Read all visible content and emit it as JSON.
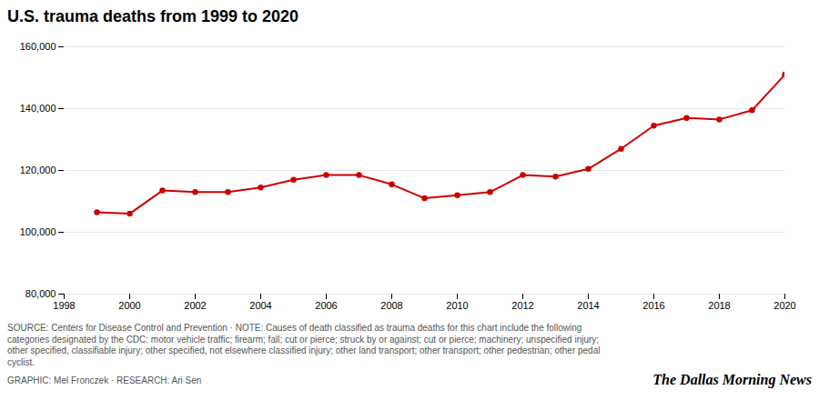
{
  "chart_data": {
    "type": "line",
    "title": "U.S. trauma deaths from 1999 to 2020",
    "x": [
      1999,
      2000,
      2001,
      2002,
      2003,
      2004,
      2005,
      2006,
      2007,
      2008,
      2009,
      2010,
      2011,
      2012,
      2013,
      2014,
      2015,
      2016,
      2017,
      2018,
      2019,
      2020
    ],
    "values": [
      106500,
      106000,
      113500,
      113000,
      113000,
      114500,
      117000,
      118500,
      118500,
      115500,
      111000,
      112000,
      113000,
      118500,
      118000,
      120500,
      127000,
      134500,
      137000,
      136500,
      139500,
      151000
    ],
    "color": "#cc0000",
    "marker": "circle",
    "xlim": [
      1998,
      2020
    ],
    "xticks": [
      1998,
      2000,
      2002,
      2004,
      2006,
      2008,
      2010,
      2012,
      2014,
      2016,
      2018,
      2020
    ],
    "ylim": [
      80000,
      160000
    ],
    "yticks": [
      {
        "value": 80000,
        "label": "80,000"
      },
      {
        "value": 100000,
        "label": "100,000"
      },
      {
        "value": 120000,
        "label": "120,000"
      },
      {
        "value": 140000,
        "label": "140,000"
      },
      {
        "value": 160000,
        "label": "160,000"
      }
    ],
    "grid": true,
    "annotations": [
      "SOURCE: Centers for Disease Control and Prevention · NOTE: Causes of death classified as trauma deaths for this chart include the following\ncategories designated by the CDC: motor vehicle traffic; firearm; fall; cut or pierce; struck by or against; cut or pierce; machinery; unspecified injury;\nother specified, classifiable injury; other specified, not elsewhere classified injury; other land transport; other transport; other pedestrian; other pedal\ncyclist.",
      "GRAPHIC: Mel Fronczek · RESEARCH: Ari Sen",
      "The Dallas Morning News"
    ]
  }
}
